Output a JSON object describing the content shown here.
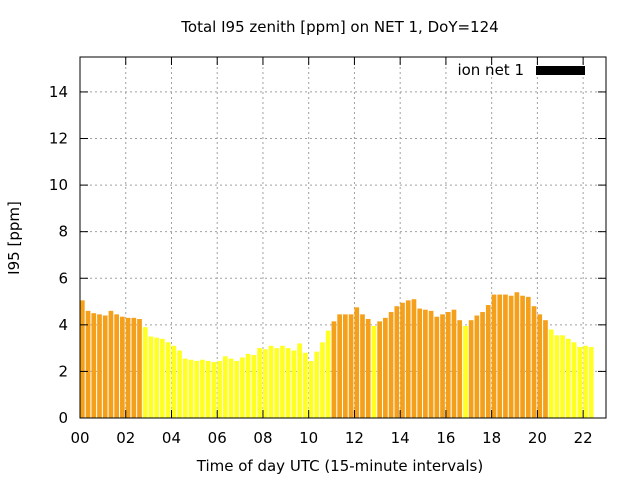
{
  "chart_data": {
    "type": "bar",
    "title": "Total I95 zenith [ppm] on NET 1, DoY=124",
    "xlabel": "Time of day UTC (15-minute intervals)",
    "ylabel": "I95 [ppm]",
    "xlim": [
      0,
      23
    ],
    "ylim": [
      0,
      15.5
    ],
    "x_ticks": [
      "00",
      "02",
      "04",
      "06",
      "08",
      "10",
      "12",
      "14",
      "16",
      "18",
      "20",
      "22"
    ],
    "y_ticks": [
      "0",
      "2",
      "4",
      "6",
      "8",
      "10",
      "12",
      "14"
    ],
    "grid": true,
    "legend_position": "top-right",
    "interval_hours": 0.25,
    "series": [
      {
        "name": "ion net 1",
        "legend_color": "#000000",
        "values": [
          5.05,
          4.6,
          4.5,
          4.45,
          4.4,
          4.6,
          4.45,
          4.35,
          4.3,
          4.3,
          4.25,
          3.9,
          3.5,
          3.45,
          3.4,
          3.25,
          3.1,
          2.9,
          2.55,
          2.5,
          2.45,
          2.5,
          2.45,
          2.4,
          2.45,
          2.65,
          2.55,
          2.45,
          2.6,
          2.75,
          2.7,
          3.0,
          2.95,
          3.1,
          3.0,
          3.1,
          3.0,
          2.9,
          3.2,
          2.8,
          2.45,
          2.85,
          3.25,
          3.75,
          4.15,
          4.45,
          4.45,
          4.45,
          4.75,
          4.45,
          4.25,
          3.95,
          4.15,
          4.3,
          4.55,
          4.8,
          4.95,
          5.05,
          5.1,
          4.7,
          4.65,
          4.6,
          4.35,
          4.45,
          4.55,
          4.65,
          4.2,
          3.95,
          4.2,
          4.4,
          4.55,
          4.85,
          5.3,
          5.3,
          5.3,
          5.25,
          5.4,
          5.25,
          5.2,
          4.8,
          4.45,
          4.2,
          3.8,
          3.55,
          3.55,
          3.4,
          3.25,
          3.05,
          3.1,
          3.05
        ],
        "bar_colors": [
          "#f5a01a",
          "#f5a01a",
          "#f5a01a",
          "#f5a01a",
          "#f5a01a",
          "#f5a01a",
          "#f5a01a",
          "#f5a01a",
          "#f5a01a",
          "#f5a01a",
          "#f5a01a",
          "#ffff22",
          "#ffff22",
          "#ffff22",
          "#ffff22",
          "#ffff22",
          "#ffff22",
          "#ffff22",
          "#ffff22",
          "#ffff22",
          "#ffff22",
          "#ffff22",
          "#ffff22",
          "#ffff22",
          "#ffff22",
          "#ffff22",
          "#ffff22",
          "#ffff22",
          "#ffff22",
          "#ffff22",
          "#ffff22",
          "#ffff22",
          "#ffff22",
          "#ffff22",
          "#ffff22",
          "#ffff22",
          "#ffff22",
          "#ffff22",
          "#ffff22",
          "#ffff22",
          "#ffff22",
          "#ffff22",
          "#ffff22",
          "#ffff22",
          "#f5a01a",
          "#f5a01a",
          "#f5a01a",
          "#f5a01a",
          "#f5a01a",
          "#f5a01a",
          "#f5a01a",
          "#ffff22",
          "#f5a01a",
          "#f5a01a",
          "#f5a01a",
          "#f5a01a",
          "#f5a01a",
          "#f5a01a",
          "#f5a01a",
          "#f5a01a",
          "#f5a01a",
          "#f5a01a",
          "#f5a01a",
          "#f5a01a",
          "#f5a01a",
          "#f5a01a",
          "#f5a01a",
          "#ffff22",
          "#f5a01a",
          "#f5a01a",
          "#f5a01a",
          "#f5a01a",
          "#f5a01a",
          "#f5a01a",
          "#f5a01a",
          "#f5a01a",
          "#f5a01a",
          "#f5a01a",
          "#f5a01a",
          "#f5a01a",
          "#f5a01a",
          "#f5a01a",
          "#ffff22",
          "#ffff22",
          "#ffff22",
          "#ffff22",
          "#ffff22",
          "#ffff22",
          "#ffff22",
          "#ffff22"
        ]
      }
    ]
  }
}
